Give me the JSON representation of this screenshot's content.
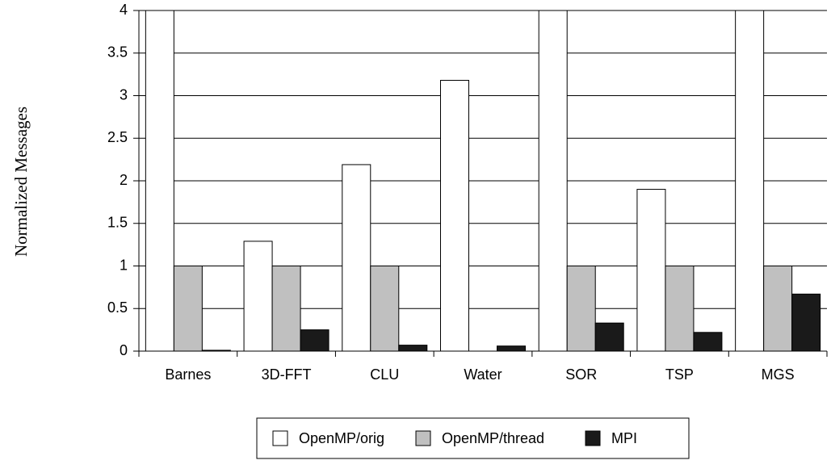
{
  "chart_data": {
    "type": "bar",
    "y_label": "Normalized Messages",
    "categories": [
      "Barnes",
      "3D-FFT",
      "CLU",
      "Water",
      "SOR",
      "TSP",
      "MGS"
    ],
    "series": [
      {
        "name": "OpenMP/orig",
        "color": "#ffffff",
        "values": [
          4,
          1.29,
          2.19,
          3.18,
          4,
          1.9,
          4
        ]
      },
      {
        "name": "OpenMP/thread",
        "color": "#c0c0c0",
        "values": [
          1,
          1,
          1,
          0,
          1,
          1,
          1
        ]
      },
      {
        "name": "MPI",
        "color": "#1a1a1a",
        "values": [
          0.01,
          0.25,
          0.07,
          0.06,
          0.33,
          0.22,
          0.67
        ]
      }
    ],
    "ylim": [
      0,
      4
    ],
    "yticks": [
      0,
      0.5,
      1,
      1.5,
      2,
      2.5,
      3,
      3.5,
      4
    ],
    "grid": true,
    "legend": "bottom"
  }
}
